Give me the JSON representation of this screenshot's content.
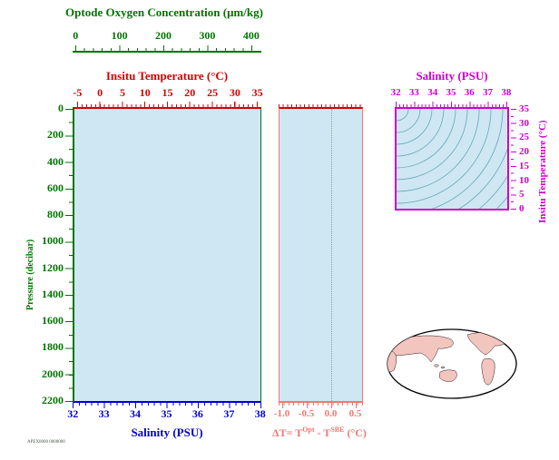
{
  "colors": {
    "oxygen_axis": "#007500",
    "temperature_axis": "#d40000",
    "pressure_axis": "#007500",
    "salinity_axis": "#0000cc",
    "delta_axis": "#f4776f",
    "ts_axis": "#cc00cc",
    "plot_background": "#cfe7f2",
    "contour_lines": "#5fa8ba",
    "land_fill": "#f3c5bf"
  },
  "main": {
    "oxygen": {
      "title": "Optode Oxygen Concentration (μm/kg)",
      "ticks": [
        "0",
        "100",
        "200",
        "300",
        "400"
      ]
    },
    "temperature": {
      "title": "Insitu Temperature (°C)",
      "ticks": [
        "-5",
        "0",
        "5",
        "10",
        "15",
        "20",
        "25",
        "30",
        "35"
      ]
    },
    "pressure": {
      "title": "Pressure (decibar)",
      "ticks": [
        "0",
        "200",
        "400",
        "600",
        "800",
        "1000",
        "1200",
        "1400",
        "1600",
        "1800",
        "2000",
        "2200"
      ]
    },
    "salinity": {
      "title": "Salinity (PSU)",
      "ticks": [
        "32",
        "33",
        "34",
        "35",
        "36",
        "37",
        "38"
      ]
    }
  },
  "delta": {
    "ticks": [
      "-1.0",
      "-0.5",
      "0.0",
      "0.5"
    ],
    "label": {
      "p1": "ΔT= T",
      "sup1": "Opt",
      "p2": " - T",
      "sup2": "SBE",
      "p3": " (°C)"
    }
  },
  "ts": {
    "salinity": {
      "title": "Salinity (PSU)",
      "ticks": [
        "32",
        "33",
        "34",
        "35",
        "36",
        "37",
        "38"
      ]
    },
    "temperature": {
      "title": "Insitu Temperature (°C)",
      "ticks": [
        "35",
        "30",
        "25",
        "20",
        "15",
        "10",
        "5",
        "0"
      ]
    }
  },
  "footnote": "APEX0000 0000000",
  "chart_data": [
    {
      "type": "line",
      "panel": "profile-main",
      "x_axes": [
        {
          "label": "Optode Oxygen Concentration (μm/kg)",
          "position": "top-outer",
          "range": [
            0,
            400
          ],
          "color": "green"
        },
        {
          "label": "Insitu Temperature (°C)",
          "position": "top",
          "range": [
            -5,
            35
          ],
          "color": "red"
        },
        {
          "label": "Salinity (PSU)",
          "position": "bottom",
          "range": [
            32,
            38
          ],
          "color": "blue"
        }
      ],
      "y_axis": {
        "label": "Pressure (decibar)",
        "range": [
          0,
          2200
        ],
        "inverted": true,
        "color": "green"
      },
      "series": [],
      "note": "empty profile axes, no data plotted"
    },
    {
      "type": "line",
      "panel": "delta-t",
      "x_axis": {
        "label": "ΔT= TOpt - TSBE (°C)",
        "ticks": [
          -1.0,
          -0.5,
          0.0,
          0.5
        ],
        "range": [
          -1.1,
          0.65
        ],
        "color": "salmon"
      },
      "y_axis": {
        "label": "Pressure (decibar)",
        "range": [
          0,
          2200
        ],
        "inverted": true
      },
      "reference_line_x": 0.0,
      "series": []
    },
    {
      "type": "scatter",
      "panel": "ts-diagram",
      "x_axis": {
        "label": "Salinity (PSU)",
        "range": [
          32,
          38
        ],
        "position": "top",
        "color": "magenta"
      },
      "y_axis": {
        "label": "Insitu Temperature (°C)",
        "range": [
          0,
          35
        ],
        "position": "right",
        "color": "magenta"
      },
      "background": "isopycnal density contour curves fanning from top-left",
      "series": []
    }
  ]
}
